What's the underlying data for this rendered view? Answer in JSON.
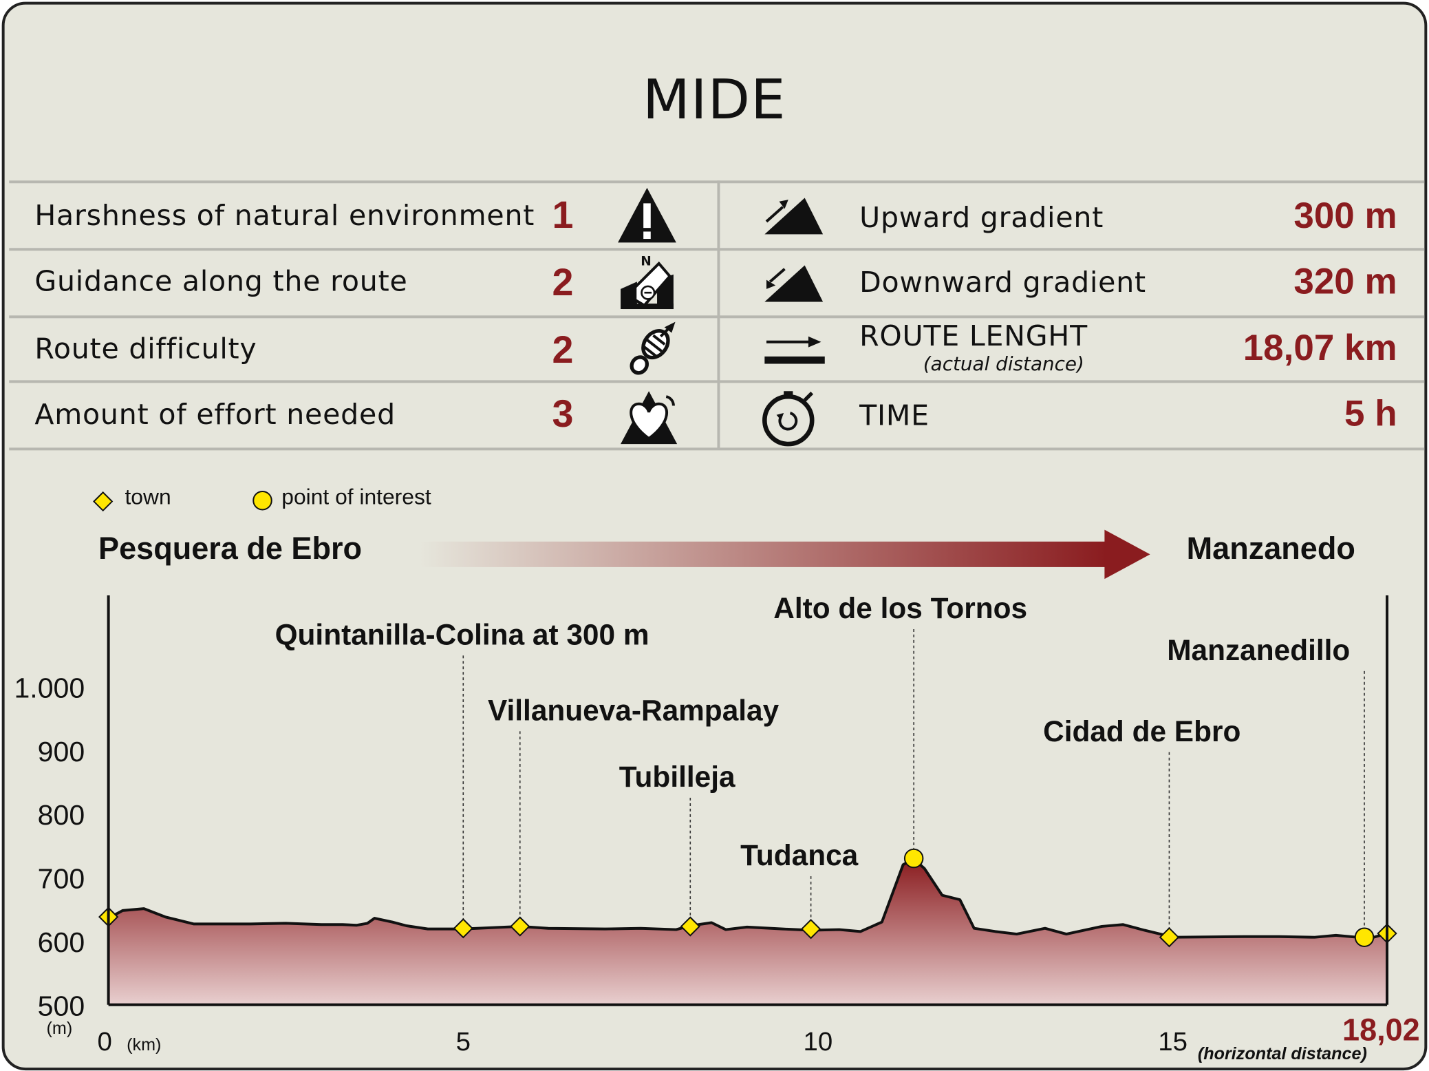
{
  "header": {
    "title": "MIDE"
  },
  "mide": {
    "rows": [
      {
        "label": "Harshness of natural environment",
        "value": "1",
        "icon": "warning-icon"
      },
      {
        "label": "Guidance along the route",
        "value": "2",
        "icon": "compass-map-icon"
      },
      {
        "label": "Route difficulty",
        "value": "2",
        "icon": "footprint-icon"
      },
      {
        "label": "Amount of effort needed",
        "value": "3",
        "icon": "heart-mountain-icon"
      }
    ],
    "stats": [
      {
        "label": "Upward gradient",
        "value": "300 m",
        "icon": "upward-gradient-icon"
      },
      {
        "label": "Downward gradient",
        "value": "320 m",
        "icon": "downward-gradient-icon"
      },
      {
        "label": "ROUTE LENGHT",
        "sublabel": "(actual distance)",
        "value": "18,07 km",
        "icon": "route-length-icon"
      },
      {
        "label": "TIME",
        "value": "5 h",
        "icon": "stopwatch-icon"
      }
    ]
  },
  "legend": {
    "town": "town",
    "poi": "point of interest"
  },
  "route": {
    "start": "Pesquera de Ebro",
    "end": "Manzanedo"
  },
  "colors": {
    "accent": "#8a1c1f",
    "marker": "#ffe600",
    "background": "#e6e6dc"
  },
  "chart_data": {
    "type": "area",
    "xlabel": "(km)",
    "ylabel": "(m)",
    "xlim": [
      0,
      18.02
    ],
    "ylim": [
      500,
      1000
    ],
    "x_ticks": [
      {
        "value": 0,
        "label": "0"
      },
      {
        "value": 5,
        "label": "5"
      },
      {
        "value": 10,
        "label": "10"
      },
      {
        "value": 15,
        "label": "15"
      }
    ],
    "y_ticks": [
      {
        "value": 1000,
        "label": "1.000"
      },
      {
        "value": 900,
        "label": "900"
      },
      {
        "value": 800,
        "label": "800"
      },
      {
        "value": 700,
        "label": "700"
      },
      {
        "value": 600,
        "label": "600"
      },
      {
        "value": 500,
        "label": "500"
      }
    ],
    "end_label": "18,02",
    "end_note": "(horizontal distance)",
    "series": [
      {
        "x": [
          0,
          0.2,
          0.5,
          0.8,
          1.2,
          2,
          2.5,
          3,
          3.3,
          3.5,
          3.65,
          3.75,
          4,
          4.2,
          4.5,
          5,
          5.8,
          6.2,
          7,
          7.5,
          8,
          8.2,
          8.5,
          8.7,
          9,
          9.5,
          9.9,
          10.3,
          10.6,
          10.9,
          11.2,
          11.35,
          11.5,
          11.75,
          12,
          12.2,
          12.5,
          12.8,
          13.2,
          13.5,
          14,
          14.3,
          14.6,
          14.9,
          15,
          16,
          16.5,
          17,
          17.3,
          17.6,
          17.8,
          18.02
        ],
        "y": [
          636,
          648,
          651,
          638,
          627,
          627,
          628,
          626,
          626,
          625,
          628,
          636,
          630,
          624,
          619,
          619,
          623,
          620,
          619,
          620,
          618,
          624,
          629,
          618,
          622,
          619,
          617,
          618,
          615,
          630,
          720,
          729,
          714,
          672,
          665,
          620,
          615,
          611,
          620,
          611,
          623,
          626,
          617,
          609,
          606,
          607,
          607,
          606,
          609,
          606,
          605,
          612
        ]
      }
    ],
    "markers": [
      {
        "name": "Pesquera de Ebro",
        "type": "town",
        "x": 0,
        "y": 638,
        "label": ""
      },
      {
        "name": "Quintanilla-Colina",
        "type": "town",
        "x": 5.0,
        "y": 620,
        "label": "Quintanilla-Colina at 300 m"
      },
      {
        "name": "Villanueva-Rampalay",
        "type": "town",
        "x": 5.8,
        "y": 623,
        "label": "Villanueva-Rampalay"
      },
      {
        "name": "Tubilleja",
        "type": "town",
        "x": 8.2,
        "y": 623,
        "label": "Tubilleja"
      },
      {
        "name": "Tudanca",
        "type": "town",
        "x": 9.9,
        "y": 619,
        "label": "Tudanca"
      },
      {
        "name": "Alto de los Tornos",
        "type": "poi",
        "x": 11.35,
        "y": 730,
        "label": "Alto de los Tornos"
      },
      {
        "name": "Cidad de Ebro",
        "type": "town",
        "x": 14.95,
        "y": 606,
        "label": "Cidad de Ebro"
      },
      {
        "name": "Manzanedillo",
        "type": "poi",
        "x": 17.7,
        "y": 606,
        "label": "Manzanedillo"
      },
      {
        "name": "Manzanedo",
        "type": "town",
        "x": 18.02,
        "y": 612,
        "label": ""
      }
    ]
  }
}
